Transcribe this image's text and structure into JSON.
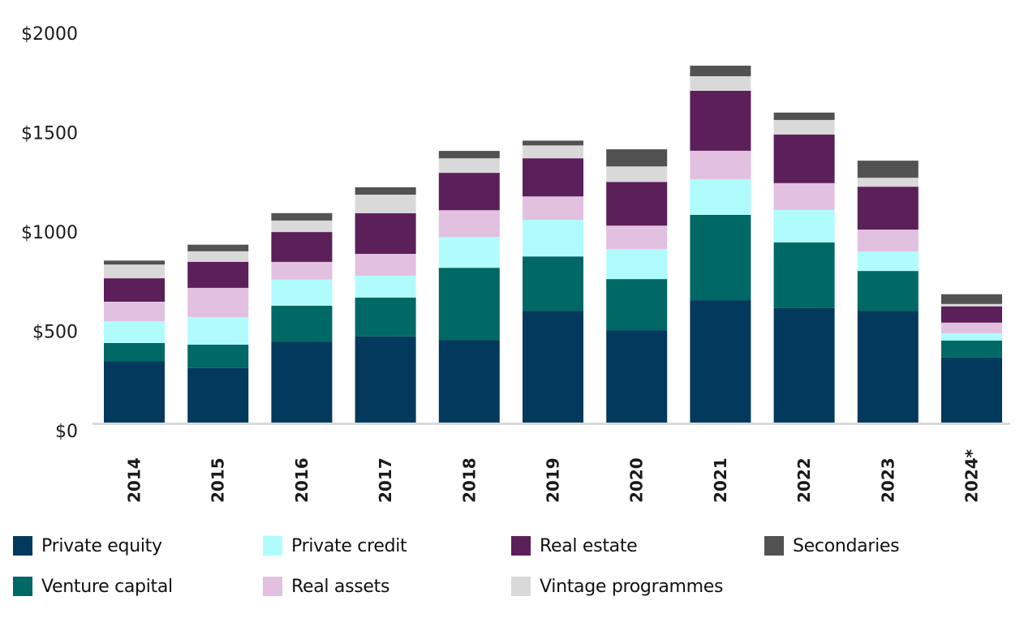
{
  "chart_data": {
    "type": "bar",
    "stacked": true,
    "title": "",
    "xlabel": "",
    "ylabel": "",
    "ylim": [
      0,
      2000
    ],
    "yticks": [
      0,
      500,
      1000,
      1500,
      2000
    ],
    "ytick_labels": [
      "$0",
      "$500",
      "$1000",
      "$1500",
      "$2000"
    ],
    "grid": false,
    "legend_position": "bottom",
    "categories": [
      "2014",
      "2015",
      "2016",
      "2017",
      "2018",
      "2019",
      "2020",
      "2021",
      "2022",
      "2023",
      "2024*"
    ],
    "series": [
      {
        "name": "Private equity",
        "color": "#02395c",
        "values": [
          314,
          278,
          412,
          437,
          420,
          567,
          469,
          620,
          580,
          567,
          331
        ]
      },
      {
        "name": "Venture capital",
        "color": "#006865",
        "values": [
          90,
          118,
          180,
          196,
          363,
          273,
          257,
          429,
          331,
          200,
          86
        ]
      },
      {
        "name": "Private credit",
        "color": "#b0fcfc",
        "values": [
          110,
          139,
          131,
          110,
          155,
          184,
          151,
          180,
          163,
          98,
          37
        ]
      },
      {
        "name": "Real assets",
        "color": "#e2c0e0",
        "values": [
          98,
          147,
          90,
          110,
          135,
          118,
          118,
          143,
          135,
          110,
          53
        ]
      },
      {
        "name": "Real estate",
        "color": "#5b1f5a",
        "values": [
          118,
          131,
          150,
          204,
          188,
          192,
          220,
          302,
          245,
          216,
          82
        ]
      },
      {
        "name": "Vintage programmes",
        "color": "#d9d9d9",
        "values": [
          69,
          53,
          58,
          94,
          73,
          65,
          78,
          73,
          73,
          45,
          12
        ]
      },
      {
        "name": "Secondaries",
        "color": "#525252",
        "values": [
          20,
          33,
          37,
          37,
          37,
          24,
          86,
          53,
          37,
          86,
          49
        ]
      }
    ]
  },
  "legend": {
    "items": [
      {
        "label": "Private equity",
        "color": "#02395c"
      },
      {
        "label": "Venture capital",
        "color": "#006865"
      },
      {
        "label": "Private credit",
        "color": "#b0fcfc"
      },
      {
        "label": "Real assets",
        "color": "#e2c0e0"
      },
      {
        "label": "Real estate",
        "color": "#5b1f5a"
      },
      {
        "label": "Vintage programmes",
        "color": "#d9d9d9"
      },
      {
        "label": "Secondaries",
        "color": "#525252"
      }
    ]
  },
  "axis_color": "#d9d9d9"
}
